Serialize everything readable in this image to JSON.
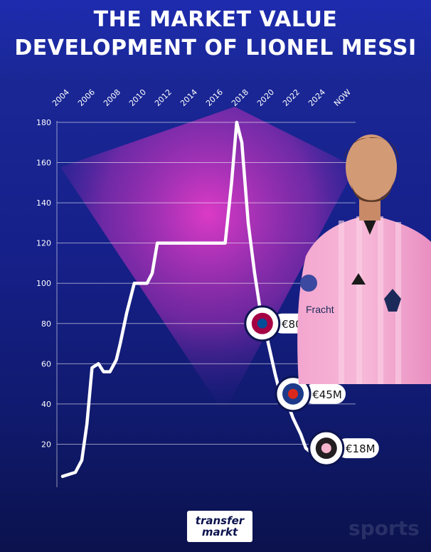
{
  "title": {
    "line1": "THE MARKET VALUE",
    "line2": "DEVELOPMENT OF LIONEL MESSI"
  },
  "chart_data": {
    "type": "line",
    "title": "THE MARKET VALUE DEVELOPMENT OF LIONEL MESSI",
    "xlabel": "",
    "ylabel": "",
    "x_ticks": [
      "2004",
      "2006",
      "2008",
      "2010",
      "2012",
      "2014",
      "2016",
      "2018",
      "2020",
      "2022",
      "2024",
      "NOW"
    ],
    "y_ticks": [
      "20",
      "40",
      "60",
      "80",
      "100",
      "120",
      "140",
      "160",
      "180"
    ],
    "ylim": [
      0,
      180
    ],
    "grid": true,
    "series": [
      {
        "x": [
          2004.0,
          2005.0,
          2005.5,
          2005.9,
          2006.3,
          2006.8,
          2007.2,
          2007.7,
          2008.2,
          2008.5,
          2009.0,
          2009.6,
          2010.0,
          2010.6,
          2011.0,
          2011.4,
          2012.0,
          2013.0,
          2014.0,
          2015.0,
          2016.0,
          2016.7,
          2017.2,
          2017.6,
          2018.0,
          2018.5,
          2019.0,
          2019.6,
          2020.0,
          2020.6,
          2021.0,
          2021.6,
          2022.0,
          2022.6,
          2023.0,
          2023.6,
          2024.0,
          2024.5,
          2025.2
        ],
        "y": [
          4,
          6,
          12,
          30,
          58,
          60,
          56,
          56,
          62,
          70,
          85,
          100,
          100,
          100,
          105,
          120,
          120,
          120,
          120,
          120,
          120,
          120,
          150,
          180,
          170,
          130,
          105,
          80,
          72,
          55,
          45,
          40,
          33,
          25,
          18,
          15,
          14,
          14,
          13
        ]
      }
    ],
    "annotations": [
      {
        "club": "FC Barcelona",
        "label": "€80M",
        "x": 2019.6,
        "y": 80
      },
      {
        "club": "Paris Saint-Germain",
        "label": "€45M",
        "x": 2022.0,
        "y": 45
      },
      {
        "club": "Inter Miami",
        "label": "€18M",
        "x": 2024.6,
        "y": 18
      }
    ]
  },
  "brand": {
    "line1": "transfer",
    "line2": "markt"
  },
  "watermark": "sports",
  "colors": {
    "line": "#ffffff",
    "grid": "#ffffff",
    "background_top": "#1b2a9a",
    "background_bottom": "#0b124d",
    "glow": "#d43cc8"
  }
}
